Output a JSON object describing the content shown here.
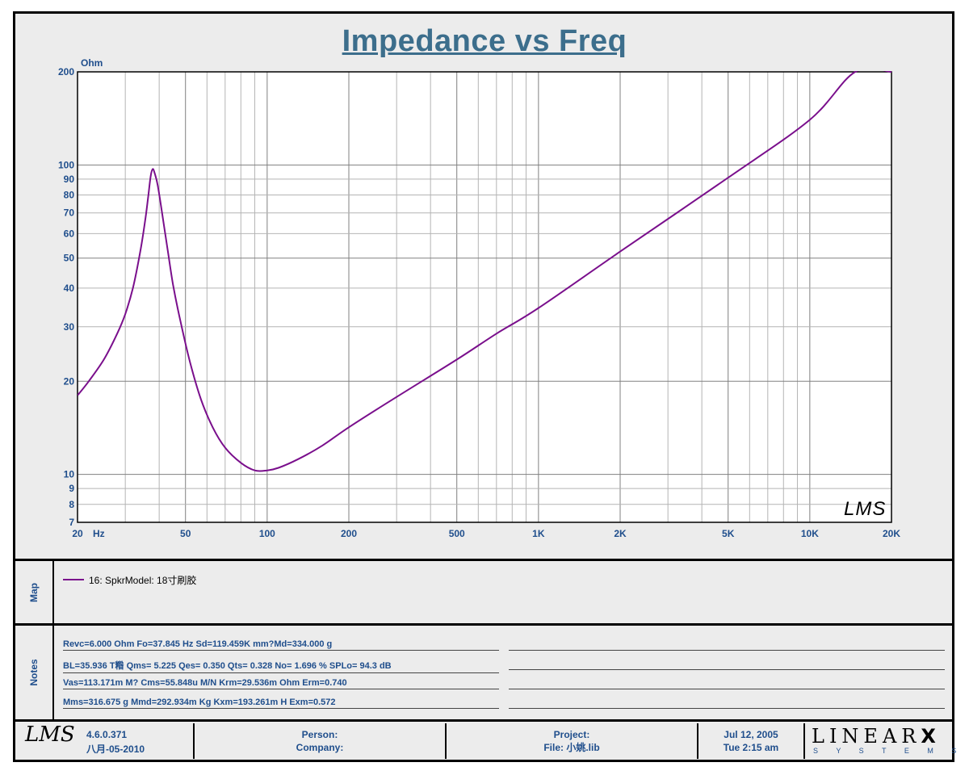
{
  "title": "Impedance vs Freq",
  "chart_data": {
    "type": "line",
    "title": "Impedance vs Freq",
    "ylabel": "Ohm",
    "xlabel": "Hz",
    "x_scale": "log",
    "y_scale": "log",
    "xlim": [
      20,
      20000
    ],
    "ylim": [
      7,
      200
    ],
    "x_tick_labels": [
      {
        "value": 20,
        "label": "20"
      },
      {
        "value": 50,
        "label": "50"
      },
      {
        "value": 100,
        "label": "100"
      },
      {
        "value": 200,
        "label": "200"
      },
      {
        "value": 500,
        "label": "500"
      },
      {
        "value": 1000,
        "label": "1K"
      },
      {
        "value": 2000,
        "label": "2K"
      },
      {
        "value": 5000,
        "label": "5K"
      },
      {
        "value": 10000,
        "label": "10K"
      },
      {
        "value": 20000,
        "label": "20K"
      }
    ],
    "x_unit_label": "Hz",
    "y_tick_labels": [
      7,
      8,
      9,
      10,
      20,
      30,
      40,
      50,
      60,
      70,
      80,
      90,
      100,
      200
    ],
    "grid": true,
    "line_color": "#7a0f8c",
    "series": [
      {
        "name": "16: SpkrModel: 18寸刷胶",
        "points": [
          [
            20,
            18.0
          ],
          [
            22,
            20.0
          ],
          [
            25,
            23.5
          ],
          [
            28,
            28.5
          ],
          [
            30,
            33.0
          ],
          [
            32,
            40.0
          ],
          [
            34,
            52.0
          ],
          [
            35.5,
            66.0
          ],
          [
            36.5,
            80.0
          ],
          [
            37.2,
            92.0
          ],
          [
            37.85,
            97.0
          ],
          [
            38.5,
            94.0
          ],
          [
            39.5,
            86.0
          ],
          [
            41,
            70.0
          ],
          [
            43,
            53.0
          ],
          [
            45,
            41.0
          ],
          [
            48,
            31.0
          ],
          [
            52,
            23.0
          ],
          [
            57,
            17.5
          ],
          [
            63,
            14.2
          ],
          [
            70,
            12.2
          ],
          [
            80,
            10.9
          ],
          [
            90,
            10.3
          ],
          [
            100,
            10.3
          ],
          [
            110,
            10.5
          ],
          [
            130,
            11.2
          ],
          [
            160,
            12.4
          ],
          [
            200,
            14.2
          ],
          [
            300,
            17.8
          ],
          [
            500,
            23.5
          ],
          [
            700,
            28.5
          ],
          [
            1000,
            34.5
          ],
          [
            2000,
            52.5
          ],
          [
            5000,
            91.0
          ],
          [
            10000,
            140.0
          ],
          [
            14700,
            200.0
          ],
          [
            20000,
            200.0
          ]
        ]
      }
    ]
  },
  "map": {
    "label": "Map",
    "legend": "16:  SpkrModel:  18寸刷胶"
  },
  "notes": {
    "label": "Notes",
    "lines": [
      "Revc=6.000 Ohm  Fo=37.845 Hz  Sd=119.459K mm?Md=334.000 g",
      "BL=35.936 T糌  Qms= 5.225  Qes= 0.350  Qts= 0.328  No= 1.696 %  SPLo= 94.3 dB",
      "Vas=113.171m M? Cms=55.848u M/N  Krm=29.536m Ohm  Erm=0.740",
      "Mms=316.675 g  Mmd=292.934m Kg  Kxm=193.261m H  Exm=0.572"
    ]
  },
  "footer": {
    "version": "4.6.0.371",
    "version_date": "八月-05-2010",
    "person": "Person:",
    "company": "Company:",
    "project": "Project:",
    "file": "File: 小姚.lib",
    "date": "Jul 12, 2005",
    "time": "Tue  2:15 am",
    "brand_top": "LINEAR",
    "brand_x": "X",
    "brand_bottom": "S Y S T E M S",
    "watermark": "LMS"
  }
}
